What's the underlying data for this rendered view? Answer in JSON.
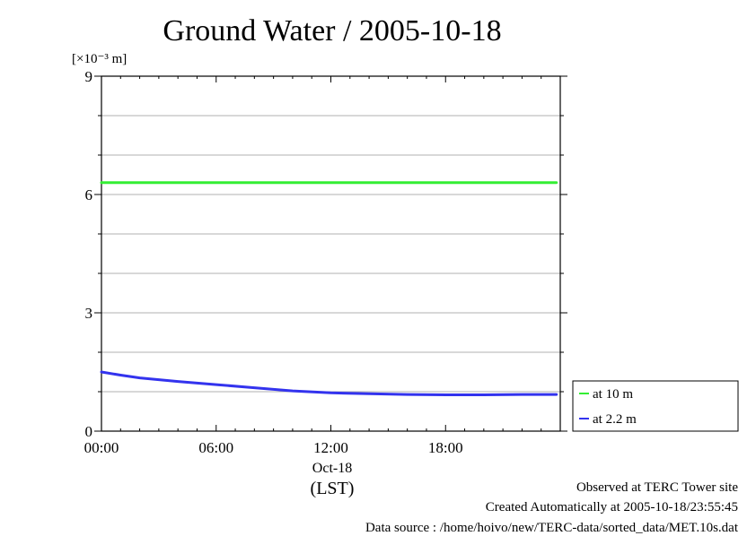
{
  "chart_data": {
    "type": "line",
    "title": "Ground Water / 2005-10-18",
    "ylabel": "[×10⁻³ m]",
    "ylim": [
      0,
      9
    ],
    "y_ticks": [
      "0",
      "3",
      "6",
      "9"
    ],
    "y_tick_values": [
      0,
      3,
      6,
      9
    ],
    "y_gridlines": [
      1,
      2,
      3,
      4,
      5,
      6,
      7,
      8
    ],
    "xlim": [
      0,
      24
    ],
    "x_ticks": [
      "00:00",
      "06:00",
      "12:00",
      "18:00"
    ],
    "x_tick_values": [
      0,
      6,
      12,
      18
    ],
    "x_date_label": "Oct-18",
    "xlabel": "(LST)",
    "grid": true,
    "legend_position": "bottom-right, outside plot",
    "series": [
      {
        "name": "at 10 m",
        "color": "#33ee33",
        "x": [
          0,
          2,
          4,
          6,
          8,
          10,
          12,
          14,
          16,
          18,
          20,
          22,
          23.8
        ],
        "values": [
          6.3,
          6.3,
          6.3,
          6.3,
          6.3,
          6.3,
          6.3,
          6.3,
          6.3,
          6.3,
          6.3,
          6.3,
          6.3
        ]
      },
      {
        "name": "at 2.2 m",
        "color": "#3333ee",
        "x": [
          0,
          1,
          2,
          4,
          6,
          8,
          10,
          12,
          14,
          16,
          18,
          20,
          22,
          23.8
        ],
        "values": [
          1.5,
          1.42,
          1.35,
          1.26,
          1.18,
          1.1,
          1.02,
          0.97,
          0.95,
          0.93,
          0.92,
          0.92,
          0.93,
          0.93
        ]
      }
    ]
  },
  "footer": {
    "observed": "Observed at TERC Tower site",
    "created": "Created Automatically at 2005-10-18/23:55:45",
    "source": "Data source : /home/hoivo/new/TERC-data/sorted_data/MET.10s.dat"
  }
}
